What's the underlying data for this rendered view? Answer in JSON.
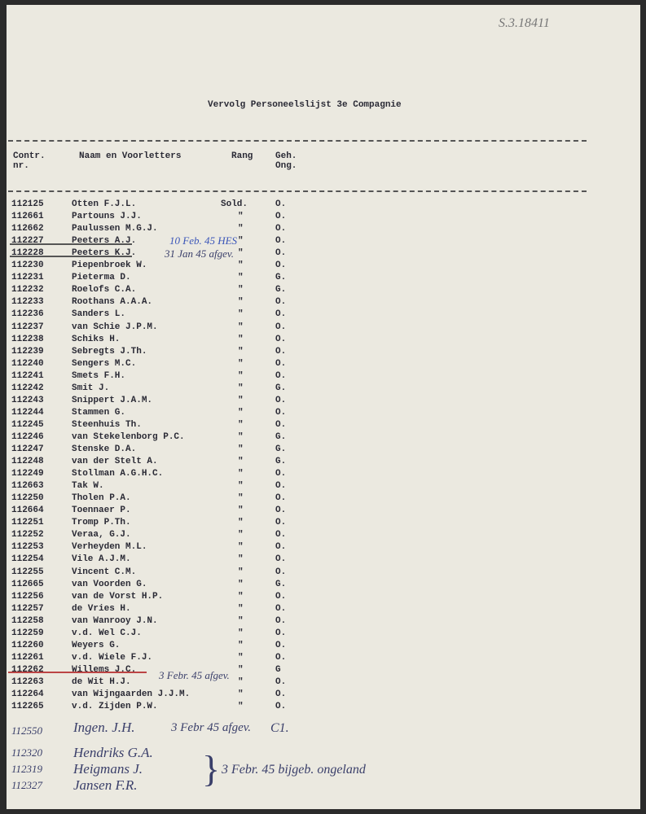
{
  "archive_ref": "S.3.18411",
  "title": "Vervolg Personeelslijst 3e Compagnie",
  "table": {
    "headers": [
      "Contr. nr.",
      "Naam en Voorletters",
      "Rang",
      "Geh. Ong."
    ],
    "rows": [
      [
        "112125",
        "Otten F.J.L.",
        "Sold.",
        "O."
      ],
      [
        "112661",
        "Partouns J.J.",
        "\"",
        "O."
      ],
      [
        "112662",
        "Paulussen M.G.J.",
        "\"",
        "O."
      ],
      [
        "112227",
        "Peeters A.J.",
        "\"",
        "O."
      ],
      [
        "112228",
        "Peeters K.J.",
        "\"",
        "O."
      ],
      [
        "112230",
        "Piepenbroek W.",
        "\"",
        "O."
      ],
      [
        "112231",
        "Pieterma D.",
        "\"",
        "G."
      ],
      [
        "112232",
        "Roelofs C.A.",
        "\"",
        "G."
      ],
      [
        "112233",
        "Roothans A.A.A.",
        "\"",
        "O."
      ],
      [
        "112236",
        "Sanders L.",
        "\"",
        "O."
      ],
      [
        "112237",
        "van Schie J.P.M.",
        "\"",
        "O."
      ],
      [
        "112238",
        "Schiks H.",
        "\"",
        "O."
      ],
      [
        "112239",
        "Sebregts J.Th.",
        "\"",
        "O."
      ],
      [
        "112240",
        "Sengers M.C.",
        "\"",
        "O."
      ],
      [
        "112241",
        "Smets F.H.",
        "\"",
        "O."
      ],
      [
        "112242",
        "Smit J.",
        "\"",
        "G."
      ],
      [
        "112243",
        "Snippert J.A.M.",
        "\"",
        "O."
      ],
      [
        "112244",
        "Stammen G.",
        "\"",
        "O."
      ],
      [
        "112245",
        "Steenhuis Th.",
        "\"",
        "O."
      ],
      [
        "112246",
        "van Stekelenborg P.C.",
        "\"",
        "G."
      ],
      [
        "112247",
        "Stenske D.A.",
        "\"",
        "G."
      ],
      [
        "112248",
        "van der Stelt A.",
        "\"",
        "G."
      ],
      [
        "112249",
        "Stollman A.G.H.C.",
        "\"",
        "O."
      ],
      [
        "112663",
        "Tak W.",
        "\"",
        "O."
      ],
      [
        "112250",
        "Tholen P.A.",
        "\"",
        "O."
      ],
      [
        "112664",
        "Toennaer P.",
        "\"",
        "O."
      ],
      [
        "112251",
        "Tromp P.Th.",
        "\"",
        "O."
      ],
      [
        "112252",
        "Veraa, G.J.",
        "\"",
        "O."
      ],
      [
        "112253",
        "Verheyden M.L.",
        "\"",
        "O."
      ],
      [
        "112254",
        "Vile A.J.M.",
        "\"",
        "O."
      ],
      [
        "112255",
        "Vincent C.M.",
        "\"",
        "O."
      ],
      [
        "112665",
        "van Voorden G.",
        "\"",
        "G."
      ],
      [
        "112256",
        "van de Vorst H.P.",
        "\"",
        "O."
      ],
      [
        "112257",
        "de Vries H.",
        "\"",
        "O."
      ],
      [
        "112258",
        "van Wanrooy J.N.",
        "\"",
        "O."
      ],
      [
        "112259",
        "v.d. Wel C.J.",
        "\"",
        "O."
      ],
      [
        "112260",
        "Weyers G.",
        "\"",
        "O."
      ],
      [
        "112261",
        "v.d. Wiele F.J.",
        "\"",
        "O."
      ],
      [
        "112262",
        "Willems J.C.",
        "\"",
        "G"
      ],
      [
        "112263",
        "de Wit H.J.",
        "\"",
        "O."
      ],
      [
        "112264",
        "van Wijngaarden J.J.M.",
        "\"",
        "O."
      ],
      [
        "112265",
        "v.d. Zijden P.W.",
        "\"",
        "O."
      ]
    ]
  },
  "annotations": [
    "10 Feb. 45 HES",
    "31 Jan 45 afgev.",
    "3 Febr. 45 afgev."
  ],
  "handwritten": {
    "row": [
      "112550",
      "Ingen. J.H.",
      "3 Febr 45 afgev.",
      "C1."
    ],
    "additions": [
      [
        "112320",
        "Hendriks G.A."
      ],
      [
        "112319",
        "Heigmans J."
      ],
      [
        "112327",
        "Jansen F.R."
      ]
    ],
    "addition_note": "3 Febr. 45 bijgeb. ongeland"
  }
}
